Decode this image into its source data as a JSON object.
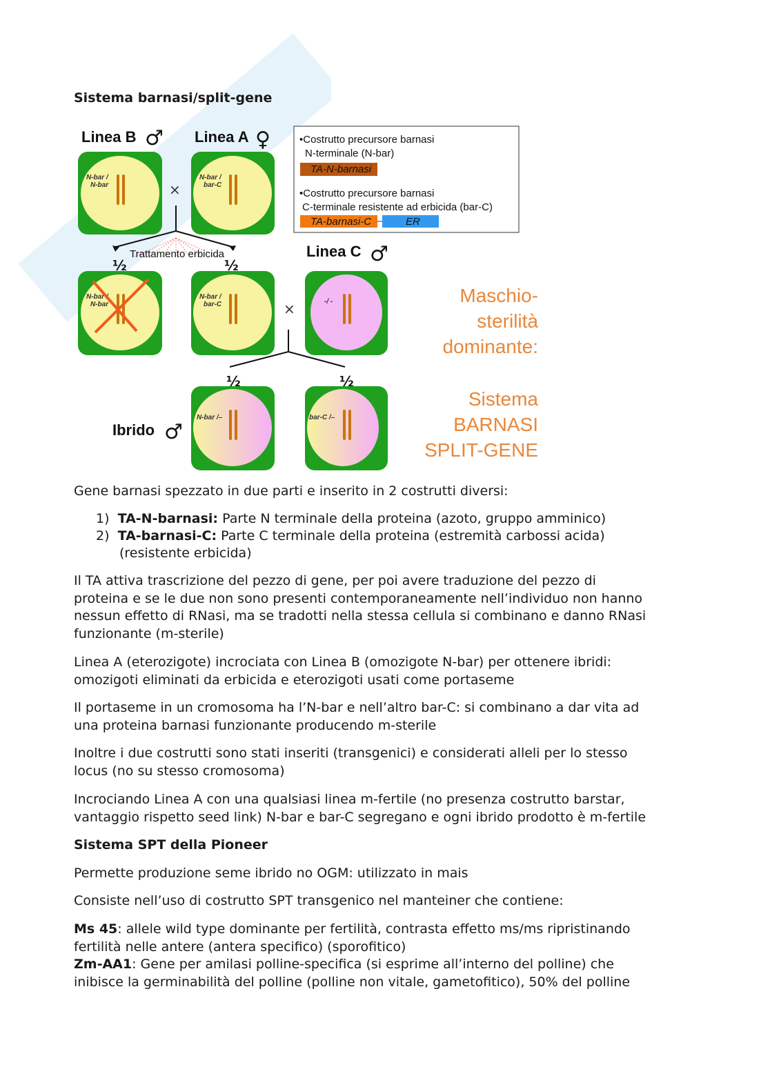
{
  "section1_title": "Sistema barnasi/split-gene",
  "figure": {
    "linea_b": "Linea B",
    "linea_a": "Linea A",
    "linea_c": "Linea C",
    "ibrido": "Ibrido",
    "male_symbol": "♂",
    "female_symbol": "♀",
    "cross_symbol": "×",
    "half": "½",
    "treatment": "Trattamento erbicida",
    "genotypes": {
      "b": [
        "N-bar /",
        "N-bar"
      ],
      "a": [
        "N-bar /",
        "bar-C"
      ],
      "dead": [
        "N-bar /",
        "N-bar"
      ],
      "survivor": [
        "N-bar /",
        "bar-C"
      ],
      "c": "-/ -",
      "hybrid1": "N-bar /–",
      "hybrid2": "bar-C /–"
    },
    "legend": {
      "item1_line1": "•Costrutto precursore barnasi",
      "item1_line2": "N-terminale (N-bar)",
      "item1_box": "TA-N-barnasi",
      "item2_line1": "•Costrutto precursore barnasi",
      "item2_line2": "C-terminale resistente ad erbicida (bar-C)",
      "item2_box1": "TA-barnasi-C",
      "item2_box2": "ER"
    },
    "side1": [
      "Maschio-",
      "sterilità",
      "dominante:"
    ],
    "side2": [
      "Sistema",
      "BARNASI",
      "SPLIT-GENE"
    ],
    "colors": {
      "green": "#1fa01f",
      "yellow": "#f7f3a0",
      "pink": "#f4b8f4",
      "orange": "#e8873a",
      "brown": "#b8560f",
      "blue": "#3399ee"
    }
  },
  "intro": "Gene barnasi spezzato in due parti e inserito in 2 costrutti diversi:",
  "list": [
    {
      "num": "1)",
      "term": "TA-N-barnasi:",
      "text": " Parte N terminale della proteina (azoto, gruppo amminico)"
    },
    {
      "num": "2)",
      "term": "TA-barnasi-C:",
      "text": " Parte C terminale della proteina (estremità carbossi acida)",
      "cont": "(resistente erbicida)"
    }
  ],
  "paragraphs": [
    [
      "Il TA attiva trascrizione del pezzo di gene, per poi avere traduzione del pezzo di",
      "proteina e se le due non sono presenti contemporaneamente nell’individuo non hanno",
      "nessun effetto di RNasi, ma se tradotti nella stessa cellula si combinano e danno RNasi",
      "funzionante (m-sterile)"
    ],
    [
      "Linea A (eterozigote) incrociata con Linea B (omozigote N-bar) per ottenere ibridi:",
      "omozigoti eliminati da erbicida e eterozigoti usati come portaseme"
    ],
    [
      "Il portaseme in un cromosoma ha l’N-bar e nell’altro bar-C: si combinano a dar vita ad",
      "una proteina barnasi funzionante producendo m-sterile"
    ],
    [
      "Inoltre i due costrutti sono stati inseriti (transgenici) e considerati alleli per lo stesso",
      "locus (no su stesso cromosoma)"
    ],
    [
      "Incrociando Linea A con una qualsiasi linea m-fertile (no presenza costrutto barstar,",
      "vantaggio rispetto seed link) N-bar e bar-C segregano e ogni ibrido prodotto è m-fertile"
    ]
  ],
  "section2_title": "Sistema SPT della Pioneer",
  "spt_p1": "Permette produzione seme ibrido no OGM: utilizzato in mais",
  "spt_p2": "Consiste nell’uso di costrutto SPT transgenico nel manteiner che contiene:",
  "ms45": {
    "term": "Ms 45",
    "line1": ": allele wild type dominante per fertilità, contrasta effetto ms/ms ripristinando",
    "line2": "fertilità nelle antere (antera specifico) (sporofitico)"
  },
  "zm": {
    "term": "Zm-AA1",
    "line1": ": Gene per amilasi polline-specifica (si esprime all’interno del polline) che",
    "line2": "inibisce la germinabilità del polline (polline non vitale, gametofitico), 50% del polline"
  }
}
